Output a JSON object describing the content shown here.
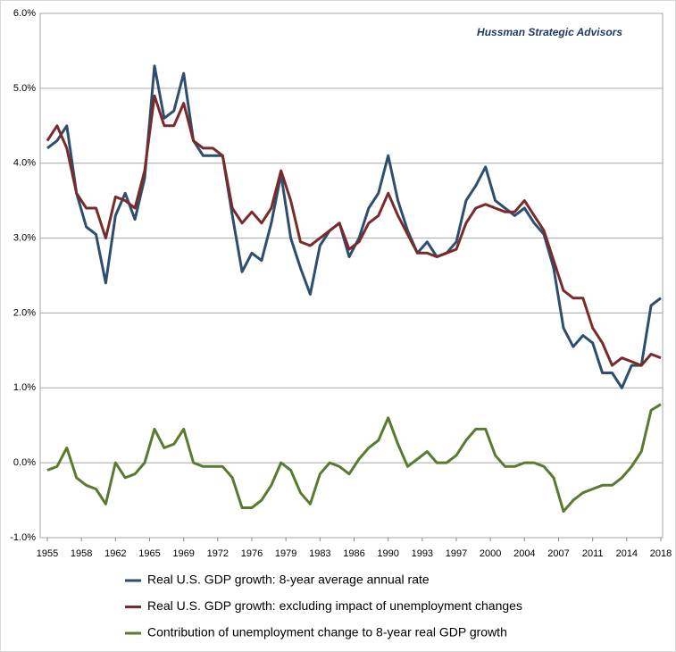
{
  "chart_data": {
    "type": "line",
    "annotation": "Hussman Strategic Advisors",
    "x": [
      1955,
      1956,
      1957,
      1958,
      1959,
      1960,
      1961,
      1962,
      1963,
      1964,
      1965,
      1966,
      1967,
      1968,
      1969,
      1970,
      1971,
      1972,
      1973,
      1974,
      1975,
      1976,
      1977,
      1978,
      1979,
      1980,
      1981,
      1982,
      1983,
      1984,
      1985,
      1986,
      1987,
      1988,
      1989,
      1990,
      1991,
      1992,
      1993,
      1994,
      1995,
      1996,
      1997,
      1998,
      1999,
      2000,
      2001,
      2002,
      2003,
      2004,
      2005,
      2006,
      2007,
      2008,
      2009,
      2010,
      2011,
      2012,
      2013,
      2014,
      2015,
      2016,
      2017,
      2018
    ],
    "series": [
      {
        "name": "Real U.S. GDP growth: 8-year average annual rate",
        "color": "#2e4e6f",
        "values": [
          4.2,
          4.3,
          4.5,
          3.6,
          3.15,
          3.05,
          2.4,
          3.3,
          3.6,
          3.25,
          3.8,
          5.3,
          4.6,
          4.7,
          5.2,
          4.3,
          4.1,
          4.1,
          4.1,
          3.3,
          2.55,
          2.8,
          2.7,
          3.2,
          3.85,
          3.0,
          2.6,
          2.25,
          2.9,
          3.1,
          3.2,
          2.75,
          3.0,
          3.4,
          3.6,
          4.1,
          3.5,
          3.1,
          2.8,
          2.95,
          2.75,
          2.8,
          2.95,
          3.5,
          3.7,
          3.95,
          3.5,
          3.4,
          3.3,
          3.4,
          3.2,
          3.05,
          2.6,
          1.8,
          1.55,
          1.7,
          1.6,
          1.2,
          1.2,
          1.0,
          1.3,
          1.3,
          2.1,
          2.2
        ]
      },
      {
        "name": "Real U.S. GDP growth: excluding impact of unemployment changes",
        "color": "#7b2a2a",
        "values": [
          4.3,
          4.5,
          4.2,
          3.6,
          3.4,
          3.4,
          3.0,
          3.55,
          3.5,
          3.4,
          3.9,
          4.9,
          4.5,
          4.5,
          4.8,
          4.3,
          4.2,
          4.2,
          4.1,
          3.4,
          3.2,
          3.35,
          3.2,
          3.4,
          3.9,
          3.5,
          2.95,
          2.9,
          3.0,
          3.1,
          3.2,
          2.85,
          2.95,
          3.2,
          3.3,
          3.6,
          3.3,
          3.05,
          2.8,
          2.8,
          2.75,
          2.8,
          2.85,
          3.2,
          3.4,
          3.45,
          3.4,
          3.35,
          3.35,
          3.5,
          3.3,
          3.1,
          2.7,
          2.3,
          2.2,
          2.2,
          1.8,
          1.6,
          1.3,
          1.4,
          1.35,
          1.3,
          1.45,
          1.4
        ]
      },
      {
        "name": "Contribution of unemployment change to 8-year real GDP growth",
        "color": "#5a7a32",
        "values": [
          -0.1,
          -0.05,
          0.2,
          -0.2,
          -0.3,
          -0.35,
          -0.55,
          0.0,
          -0.2,
          -0.15,
          0.0,
          0.45,
          0.2,
          0.25,
          0.45,
          0.0,
          -0.05,
          -0.05,
          -0.05,
          -0.2,
          -0.6,
          -0.6,
          -0.5,
          -0.3,
          0.0,
          -0.1,
          -0.4,
          -0.55,
          -0.15,
          0.0,
          -0.05,
          -0.15,
          0.05,
          0.2,
          0.3,
          0.6,
          0.25,
          -0.05,
          0.05,
          0.15,
          0.0,
          0.0,
          0.1,
          0.3,
          0.45,
          0.45,
          0.1,
          -0.05,
          -0.05,
          0.0,
          0.0,
          -0.05,
          -0.2,
          -0.65,
          -0.5,
          -0.4,
          -0.35,
          -0.3,
          -0.3,
          -0.2,
          -0.05,
          0.15,
          0.7,
          0.78
        ]
      }
    ],
    "xlim": [
      1955,
      2018
    ],
    "xticks": [
      1955,
      {
        "value": 1958.5,
        "label": "1958"
      },
      1962,
      {
        "value": 1965.5,
        "label": "1965"
      },
      1969,
      {
        "value": 1972.5,
        "label": "1972"
      },
      1976,
      {
        "value": 1979.5,
        "label": "1979"
      },
      1983,
      {
        "value": 1986.5,
        "label": "1986"
      },
      1990,
      {
        "value": 1993.5,
        "label": "1993"
      },
      1997,
      {
        "value": 2000.5,
        "label": "2000"
      },
      2004,
      {
        "value": 2007.5,
        "label": "2007"
      },
      2011,
      {
        "value": 2014.5,
        "label": "2014"
      },
      2018
    ],
    "ylim": [
      -1,
      6
    ],
    "yticks": [
      {
        "value": -1,
        "label": "-1.0%"
      },
      {
        "value": 0,
        "label": "0.0%"
      },
      {
        "value": 1,
        "label": "1.0%"
      },
      {
        "value": 2,
        "label": "2.0%"
      },
      {
        "value": 3,
        "label": "3.0%"
      },
      {
        "value": 4,
        "label": "4.0%"
      },
      {
        "value": 5,
        "label": "5.0%"
      },
      {
        "value": 6,
        "label": "6.0%"
      }
    ],
    "grid": true,
    "legend": "bottom"
  }
}
